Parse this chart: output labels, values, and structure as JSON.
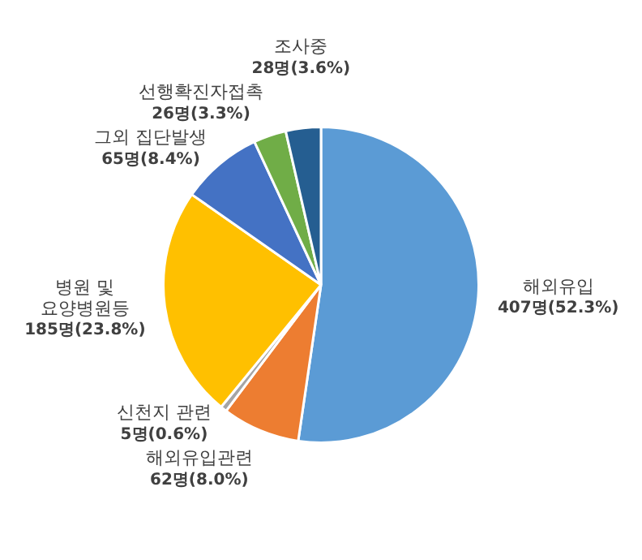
{
  "chart_data": {
    "type": "pie",
    "categories": [
      "해외유입",
      "해외유입관련",
      "신천지 관련",
      "병원 및 요양병원등",
      "그외 집단발생",
      "선행확진자접촉",
      "조사중"
    ],
    "values": [
      407,
      62,
      5,
      185,
      65,
      26,
      28
    ],
    "value_labels": [
      "407명(52.3%)",
      "62명(8.0%)",
      "5명(0.6%)",
      "185명(23.8%)",
      "65명(8.4%)",
      "26명(3.3%)",
      "28명(3.6%)"
    ],
    "colors": [
      "#5b9bd5",
      "#ed7d31",
      "#a5a5a5",
      "#ffc000",
      "#4472c4",
      "#70ad47",
      "#255e91"
    ],
    "legend": false
  }
}
